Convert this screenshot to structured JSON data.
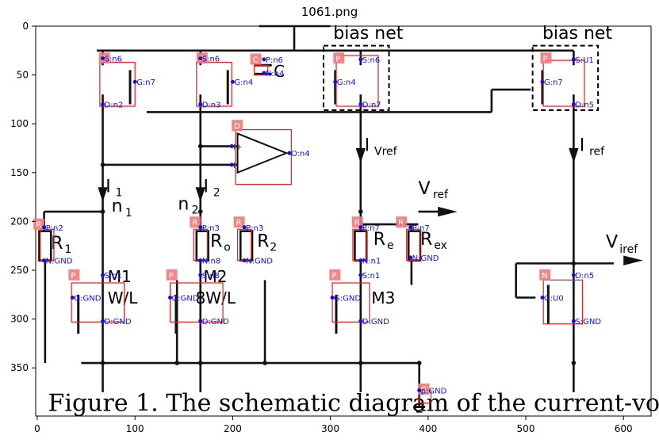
{
  "figure": {
    "title": "1061.png",
    "x_ticks": [
      "0",
      "100",
      "200",
      "300",
      "400",
      "500",
      "600"
    ],
    "y_ticks": [
      "0",
      "50",
      "100",
      "150",
      "200",
      "250",
      "300",
      "350"
    ]
  },
  "schematic": {
    "top_labels": [
      "bias net",
      "bias net"
    ],
    "current_labels": [
      "I",
      "1",
      "I",
      "2",
      "I",
      "Vref",
      "I",
      "ref"
    ],
    "node_labels": [
      "n",
      "1",
      "n",
      "2"
    ],
    "voltage_labels": [
      "V",
      "ref",
      "V",
      "iref"
    ],
    "resistor_labels": [
      "R",
      "1",
      "R",
      "o",
      "R",
      "2",
      "R",
      "e",
      "R",
      "ex"
    ],
    "transistor_labels": [
      "M1",
      "W/L",
      "M2",
      "8W/L",
      "M3"
    ],
    "cap_label": "C",
    "caption": "Figure 1. The schematic diagram of the current-voltage"
  },
  "annotations": {
    "tags": [
      "P",
      "P",
      "C",
      "P",
      "P",
      "D",
      "R",
      "R",
      "R",
      "R",
      "R",
      "P",
      "P",
      "P",
      "N",
      "G"
    ],
    "pins": [
      "S:n6",
      "G:n7",
      "D:n2",
      "S:n6",
      "G:n4",
      "D:n3",
      "P:n6",
      "N:n4",
      "S:n6",
      "G:n4",
      "D:n7",
      "S:U1",
      "G:n7",
      "D:n5",
      "I+",
      "I-",
      "O:n4",
      "P:n2",
      "N:GND",
      "P:n3",
      "N:n8",
      "P:n3",
      "N:GND",
      "P:n7",
      "N:n1",
      "P:n7",
      "N:GND",
      "S:n1",
      "G:GND",
      "D:GND",
      "S:n8",
      "G:GND",
      "D:GND",
      "S:n1",
      "G:GND",
      "D:GND",
      "D:n5",
      "G:U0",
      "S:GND",
      "p:GND"
    ]
  },
  "colors": {
    "tag_fill": "#f07a7a",
    "box": "#e21c1c",
    "pin": "#1010e0",
    "wire": "#111111"
  }
}
